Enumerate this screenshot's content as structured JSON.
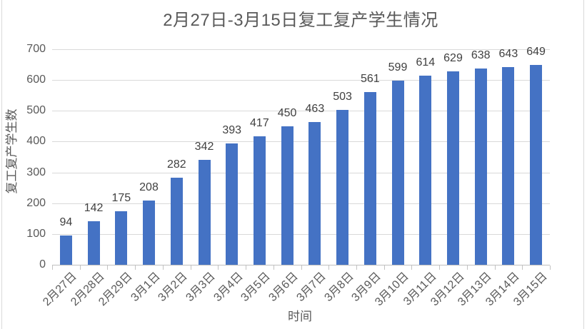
{
  "colors": {
    "bar": "#4472C4",
    "gridline": "#D9D9D9",
    "axis_line": "#BFBFBF",
    "tick_mark": "#C3C3C3",
    "title_text": "#595959",
    "axis_text": "#595959",
    "data_label_text": "#404040",
    "frame_border": "#D9D9D9",
    "background": "#FFFFFF"
  },
  "chart_data": {
    "type": "bar",
    "title": "2月27日-3月15日复工复产学生情况",
    "categories": [
      "2月27日",
      "2月28日",
      "2月29日",
      "3月1日",
      "3月2日",
      "3月3日",
      "3月4日",
      "3月5日",
      "3月6日",
      "3月7日",
      "3月8日",
      "3月9日",
      "3月10日",
      "3月11日",
      "3月12日",
      "3月13日",
      "3月14日",
      "3月15日"
    ],
    "values": [
      94,
      142,
      175,
      208,
      282,
      342,
      393,
      417,
      450,
      463,
      503,
      561,
      599,
      614,
      629,
      638,
      643,
      649
    ],
    "xlabel": "时间",
    "ylabel": "复工复产学生数",
    "ylim": [
      0,
      700
    ],
    "yticks": [
      0,
      100,
      200,
      300,
      400,
      500,
      600,
      700
    ],
    "grid": true,
    "legend": false,
    "data_labels": "outside-end"
  }
}
